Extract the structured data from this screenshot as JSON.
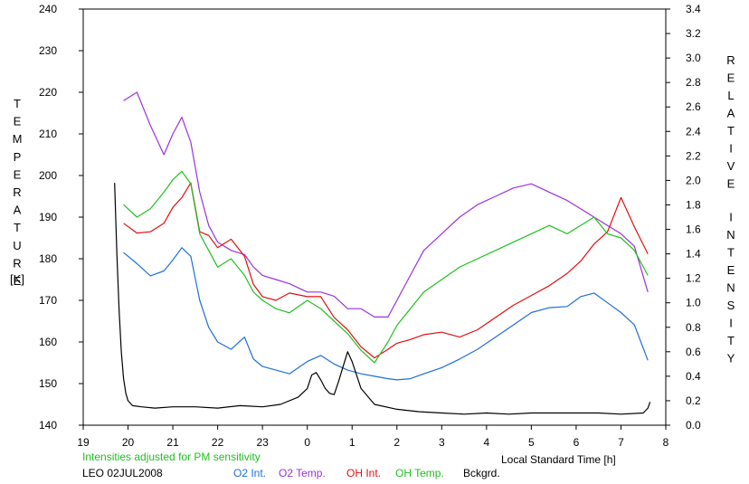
{
  "chart_data": {
    "type": "line",
    "title": "LEO 02JUL2008",
    "note": "Intensities adjusted for PM sensitivity",
    "xlabel": "Local Standard Time [h]",
    "ylabel_left": "TEMPERATURE",
    "ylabel_left_unit": "[K]",
    "ylabel_right": "RELATIVE INTENSITY",
    "xlim": [
      19,
      32
    ],
    "ylim_left": [
      140,
      240
    ],
    "ylim_right": [
      0.0,
      3.4
    ],
    "x_tick_values": [
      19,
      20,
      21,
      22,
      23,
      24,
      25,
      26,
      27,
      28,
      29,
      30,
      31,
      32
    ],
    "x_tick_labels": [
      "19",
      "20",
      "21",
      "22",
      "23",
      "0",
      "1",
      "2",
      "3",
      "4",
      "5",
      "6",
      "7",
      "8"
    ],
    "y_left_ticks": [
      "140",
      "150",
      "160",
      "170",
      "180",
      "190",
      "200",
      "210",
      "220",
      "230",
      "240"
    ],
    "y_right_ticks": [
      "0.0",
      "0.2",
      "0.4",
      "0.6",
      "0.8",
      "1.0",
      "1.2",
      "1.4",
      "1.6",
      "1.8",
      "2.0",
      "2.2",
      "2.4",
      "2.6",
      "2.8",
      "3.0",
      "3.2",
      "3.4"
    ],
    "grid": false,
    "legend_position": "bottom",
    "series": [
      {
        "name": "O2 Int.",
        "axis": "right",
        "color": "#1f6fd8",
        "x": [
          19.9,
          20.2,
          20.5,
          20.8,
          21.0,
          21.2,
          21.4,
          21.6,
          21.8,
          22.0,
          22.3,
          22.6,
          22.8,
          23.0,
          23.3,
          23.6,
          24.0,
          24.3,
          24.6,
          24.9,
          25.2,
          25.5,
          25.8,
          26.0,
          26.3,
          26.6,
          27.0,
          27.4,
          27.8,
          28.2,
          28.6,
          29.0,
          29.4,
          29.8,
          30.1,
          30.4,
          30.7,
          31.0,
          31.3,
          31.6
        ],
        "y": [
          1.41,
          1.32,
          1.22,
          1.26,
          1.35,
          1.45,
          1.38,
          1.02,
          0.8,
          0.68,
          0.62,
          0.72,
          0.54,
          0.48,
          0.45,
          0.42,
          0.52,
          0.57,
          0.5,
          0.45,
          0.42,
          0.4,
          0.38,
          0.37,
          0.38,
          0.42,
          0.47,
          0.54,
          0.62,
          0.72,
          0.82,
          0.92,
          0.96,
          0.97,
          1.05,
          1.08,
          1.0,
          0.92,
          0.82,
          0.53
        ]
      },
      {
        "name": "O2 Temp.",
        "axis": "left",
        "color": "#9b30e0",
        "x": [
          19.9,
          20.2,
          20.5,
          20.8,
          21.0,
          21.2,
          21.4,
          21.6,
          21.8,
          22.0,
          22.3,
          22.6,
          22.8,
          23.0,
          23.3,
          23.6,
          24.0,
          24.3,
          24.6,
          24.9,
          25.2,
          25.5,
          25.8,
          26.0,
          26.3,
          26.6,
          27.0,
          27.4,
          27.8,
          28.2,
          28.6,
          29.0,
          29.4,
          29.8,
          30.1,
          30.4,
          30.7,
          31.0,
          31.3,
          31.6
        ],
        "y": [
          218,
          220,
          212,
          205,
          210,
          214,
          208,
          196,
          188,
          184,
          182,
          181,
          178,
          176,
          175,
          174,
          172,
          172,
          171,
          168,
          168,
          166,
          166,
          170,
          176,
          182,
          186,
          190,
          193,
          195,
          197,
          198,
          196,
          194,
          192,
          190,
          188,
          186,
          183,
          172
        ]
      },
      {
        "name": "OH Int.",
        "axis": "right",
        "color": "#e01010",
        "x": [
          19.9,
          20.2,
          20.5,
          20.8,
          21.0,
          21.2,
          21.4,
          21.6,
          21.8,
          22.0,
          22.3,
          22.6,
          22.8,
          23.0,
          23.3,
          23.6,
          24.0,
          24.3,
          24.6,
          24.9,
          25.2,
          25.5,
          25.8,
          26.0,
          26.3,
          26.6,
          27.0,
          27.4,
          27.8,
          28.2,
          28.6,
          29.0,
          29.4,
          29.8,
          30.1,
          30.4,
          30.7,
          31.0,
          31.3,
          31.6
        ],
        "y": [
          1.65,
          1.57,
          1.58,
          1.65,
          1.78,
          1.86,
          1.98,
          1.58,
          1.55,
          1.45,
          1.52,
          1.38,
          1.15,
          1.05,
          1.02,
          1.08,
          1.05,
          1.05,
          0.88,
          0.78,
          0.64,
          0.55,
          0.62,
          0.67,
          0.7,
          0.74,
          0.76,
          0.72,
          0.78,
          0.88,
          0.98,
          1.06,
          1.14,
          1.24,
          1.34,
          1.48,
          1.58,
          1.86,
          1.62,
          1.4
        ]
      },
      {
        "name": "OH Temp.",
        "axis": "left",
        "color": "#20c020",
        "x": [
          19.9,
          20.2,
          20.5,
          20.8,
          21.0,
          21.2,
          21.4,
          21.6,
          21.8,
          22.0,
          22.3,
          22.6,
          22.8,
          23.0,
          23.3,
          23.6,
          24.0,
          24.3,
          24.6,
          24.9,
          25.2,
          25.5,
          25.8,
          26.0,
          26.3,
          26.6,
          27.0,
          27.4,
          27.8,
          28.2,
          28.6,
          29.0,
          29.4,
          29.8,
          30.1,
          30.4,
          30.7,
          31.0,
          31.3,
          31.6
        ],
        "y": [
          193,
          190,
          192,
          196,
          199,
          201,
          198,
          186,
          182,
          178,
          180,
          176,
          172,
          170,
          168,
          167,
          170,
          168,
          165,
          162,
          158,
          155,
          160,
          164,
          168,
          172,
          175,
          178,
          180,
          182,
          184,
          186,
          188,
          186,
          188,
          190,
          186,
          185,
          182,
          176
        ]
      },
      {
        "name": "Bckgrd.",
        "axis": "right",
        "color": "#000000",
        "x": [
          19.7,
          19.75,
          19.8,
          19.85,
          19.9,
          19.95,
          20.0,
          20.1,
          20.3,
          20.6,
          21.0,
          21.5,
          22.0,
          22.5,
          23.0,
          23.4,
          23.8,
          24.0,
          24.1,
          24.2,
          24.3,
          24.4,
          24.5,
          24.6,
          24.7,
          24.8,
          24.9,
          25.0,
          25.2,
          25.5,
          26.0,
          26.5,
          27.0,
          27.5,
          28.0,
          28.5,
          29.0,
          29.5,
          30.0,
          30.5,
          31.0,
          31.5,
          31.6,
          31.65
        ],
        "y": [
          1.98,
          1.4,
          0.95,
          0.6,
          0.38,
          0.26,
          0.2,
          0.16,
          0.15,
          0.14,
          0.15,
          0.15,
          0.14,
          0.16,
          0.15,
          0.17,
          0.23,
          0.3,
          0.41,
          0.43,
          0.37,
          0.3,
          0.26,
          0.25,
          0.36,
          0.48,
          0.6,
          0.52,
          0.3,
          0.17,
          0.13,
          0.11,
          0.1,
          0.09,
          0.1,
          0.09,
          0.1,
          0.1,
          0.1,
          0.1,
          0.09,
          0.1,
          0.14,
          0.19
        ]
      }
    ]
  }
}
